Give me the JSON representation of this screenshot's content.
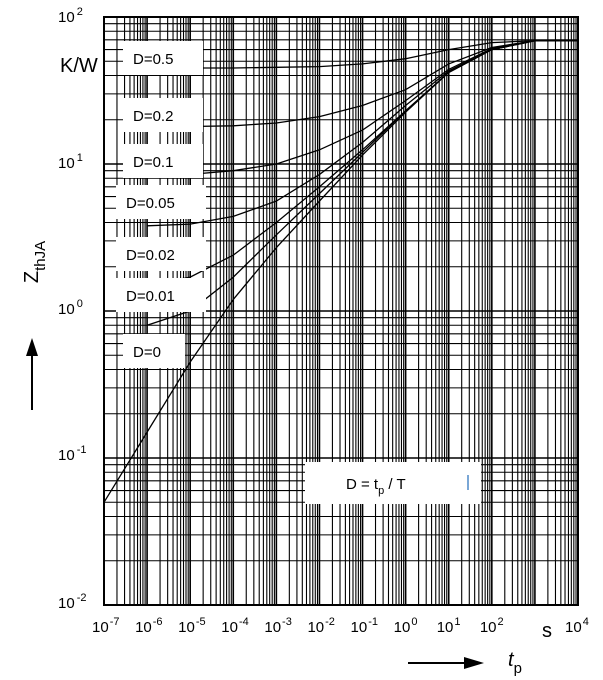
{
  "chart_data": {
    "type": "line",
    "title": "",
    "xscale": "log",
    "yscale": "log",
    "xlim": [
      1e-07,
      10000.0
    ],
    "ylim": [
      0.01,
      100
    ],
    "grid": true,
    "x_ticks": [
      {
        "base": "10",
        "exp": "-7"
      },
      {
        "base": "10",
        "exp": "-6"
      },
      {
        "base": "10",
        "exp": "-5"
      },
      {
        "base": "10",
        "exp": "-4"
      },
      {
        "base": "10",
        "exp": "-3"
      },
      {
        "base": "10",
        "exp": "-2"
      },
      {
        "base": "10",
        "exp": "-1"
      },
      {
        "base": "10",
        "exp": "0"
      },
      {
        "base": "10",
        "exp": "1"
      },
      {
        "base": "10",
        "exp": "2"
      },
      {
        "base": "10",
        "exp": "4"
      }
    ],
    "x_unit": "s",
    "y_ticks": [
      {
        "base": "10",
        "exp": "2"
      },
      {
        "base": "10",
        "exp": "1"
      },
      {
        "base": "10",
        "exp": "0"
      },
      {
        "base": "10",
        "exp": "-1"
      },
      {
        "base": "10",
        "exp": "-2"
      }
    ],
    "y_unit": "K/W",
    "ylabel": {
      "main": "Z",
      "sub": "thJA"
    },
    "xlabel": {
      "main": "t",
      "sub": "p"
    },
    "annotation": {
      "prefix": "D = t",
      "sub": "p",
      "suffix": " / T"
    },
    "series": [
      {
        "name": "D=0.5",
        "x": [
          1e-05,
          0.0001,
          0.001,
          0.01,
          0.1,
          1,
          10,
          100,
          1000,
          10000
        ],
        "y": [
          45,
          45,
          45.5,
          46,
          48,
          52,
          60,
          67,
          69,
          69
        ]
      },
      {
        "name": "D=0.2",
        "x": [
          1e-05,
          0.0001,
          0.001,
          0.01,
          0.1,
          1,
          10,
          100,
          1000,
          10000
        ],
        "y": [
          18,
          18.2,
          19,
          21,
          25,
          32,
          48,
          62,
          69,
          69
        ]
      },
      {
        "name": "D=0.1",
        "x": [
          1e-05,
          0.0001,
          0.001,
          0.01,
          0.1,
          1,
          10,
          100,
          1000,
          10000
        ],
        "y": [
          8.5,
          9,
          10,
          12.5,
          17,
          27,
          44,
          61,
          69,
          69
        ]
      },
      {
        "name": "D=0.05",
        "x": [
          1e-06,
          1e-05,
          0.0001,
          0.001,
          0.01,
          0.1,
          1,
          10,
          100,
          1000,
          10000
        ],
        "y": [
          3.8,
          3.9,
          4.4,
          5.6,
          8.5,
          14,
          25,
          43,
          60,
          69,
          69
        ]
      },
      {
        "name": "D=0.02",
        "x": [
          1e-06,
          1e-05,
          0.0001,
          0.001,
          0.01,
          0.1,
          1,
          10,
          100,
          1000,
          10000
        ],
        "y": [
          1.5,
          1.7,
          2.4,
          4,
          7,
          12.5,
          23,
          42,
          60,
          69,
          69
        ]
      },
      {
        "name": "D=0.01",
        "x": [
          1e-06,
          1e-05,
          0.0001,
          0.001,
          0.01,
          0.1,
          1,
          10,
          100,
          1000,
          10000
        ],
        "y": [
          0.8,
          1,
          1.7,
          3.3,
          6.3,
          12,
          23,
          42,
          60,
          69,
          69
        ]
      },
      {
        "name": "D=0",
        "x": [
          1e-07,
          1e-06,
          1e-05,
          0.0001,
          0.001,
          0.01,
          0.1,
          1,
          10,
          100,
          1000,
          10000
        ],
        "y": [
          0.05,
          0.15,
          0.45,
          1.2,
          2.7,
          5.6,
          11.5,
          22.5,
          42,
          60,
          69,
          69
        ]
      }
    ]
  }
}
